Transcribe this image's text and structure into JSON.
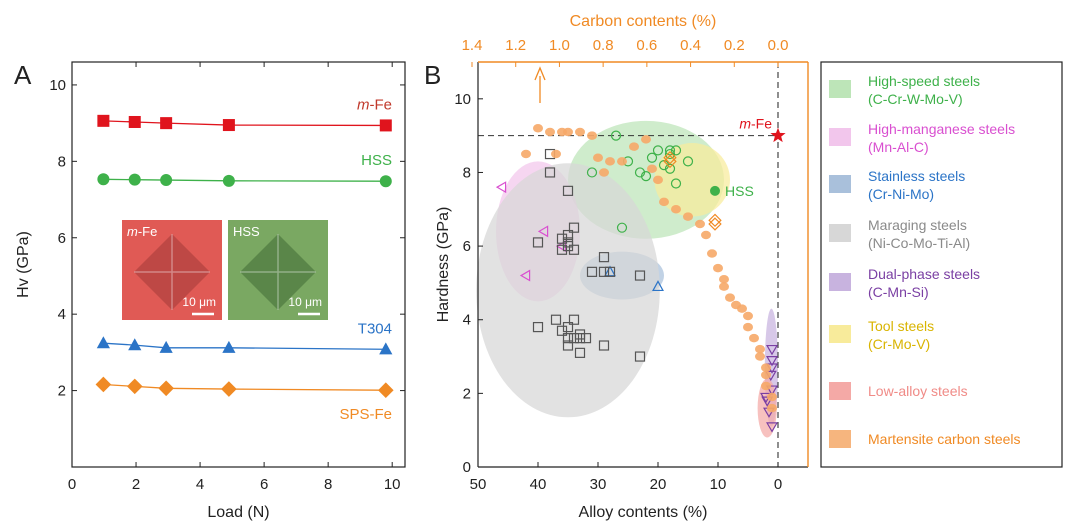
{
  "chart_data": [
    {
      "panel_label": "A",
      "type": "scatter",
      "xlabel": "Load (N)",
      "ylabel": "Hv (GPa)",
      "xlim": [
        0,
        10.4
      ],
      "ylim": [
        0,
        10.6
      ],
      "xticks": [
        0,
        2,
        4,
        6,
        8,
        10
      ],
      "yticks": [
        2,
        4,
        6,
        8,
        10
      ],
      "grid": false,
      "series": [
        {
          "name_prefix": "m",
          "name_suffix": "-Fe",
          "marker": "square",
          "color": "#e0141d",
          "label_color": "#c0392b",
          "x": [
            0.98,
            1.96,
            2.94,
            4.9,
            9.8
          ],
          "y": [
            9.06,
            9.03,
            9.0,
            8.95,
            8.94
          ]
        },
        {
          "name": "HSS",
          "marker": "circle",
          "color": "#3eb14a",
          "label_color": "#3eb14a",
          "x": [
            0.98,
            1.96,
            2.94,
            4.9,
            9.8
          ],
          "y": [
            7.53,
            7.52,
            7.51,
            7.49,
            7.48
          ]
        },
        {
          "name": "T304",
          "marker": "triangle",
          "color": "#2b74c7",
          "label_color": "#2b74c7",
          "x": [
            0.98,
            1.96,
            2.94,
            4.9,
            9.8
          ],
          "y": [
            3.24,
            3.19,
            3.12,
            3.12,
            3.08
          ]
        },
        {
          "name": "SPS-Fe",
          "marker": "diamond",
          "color": "#f08a24",
          "label_color": "#f08a24",
          "x": [
            0.98,
            1.96,
            2.94,
            4.9,
            9.8
          ],
          "y": [
            2.16,
            2.11,
            2.06,
            2.04,
            2.01
          ]
        }
      ],
      "insets": [
        {
          "label_prefix": "m",
          "label_suffix": "-Fe",
          "scale_bar": "10 μm",
          "color": "#e05a55"
        },
        {
          "label": "HSS",
          "scale_bar": "10 μm",
          "color": "#7aa862"
        }
      ]
    },
    {
      "panel_label": "B",
      "type": "scatter",
      "xlabel": "Alloy contents (%)",
      "ylabel": "Hardness (GPa)",
      "x2label": "Carbon contents (%)",
      "xlim": [
        50,
        -5
      ],
      "ylim": [
        0,
        11
      ],
      "xticks": [
        50,
        40,
        30,
        20,
        10,
        0
      ],
      "yticks": [
        0,
        2,
        4,
        6,
        8,
        10
      ],
      "x2ticks": [
        "1.4",
        "1.2",
        "1.0",
        "0.8",
        "0.6",
        "0.4",
        "0.2",
        "0.0"
      ],
      "grid": false,
      "reference_lines": {
        "x": 0,
        "y": 9
      },
      "highlighted_points": [
        {
          "label_prefix": "m",
          "label_suffix": "-Fe",
          "x": 0,
          "y": 9.0,
          "marker": "star",
          "color": "#e0141d"
        },
        {
          "label": "HSS",
          "x": 10.5,
          "y": 7.5,
          "marker": "circle",
          "color": "#3eb14a"
        }
      ],
      "legend_position": "right",
      "legend": [
        {
          "line1": "High-speed steels",
          "line2": "(C-Cr-W-Mo-V)",
          "swatch": "#bde5b8",
          "text_color": "#3eb14a"
        },
        {
          "line1": "High-manganese steels",
          "line2": "(Mn-Al-C)",
          "swatch": "#f2c6ec",
          "text_color": "#d94fd0"
        },
        {
          "line1": "Stainless steels",
          "line2": "(Cr-Ni-Mo)",
          "swatch": "#a9c0db",
          "text_color": "#2b74c7"
        },
        {
          "line1": "Maraging steels",
          "line2": "(Ni-Co-Mo-Ti-Al)",
          "swatch": "#d7d7d7",
          "text_color": "#8a8a8a"
        },
        {
          "line1": "Dual-phase steels",
          "line2": "(C-Mn-Si)",
          "swatch": "#c8b3df",
          "text_color": "#7a3fa3"
        },
        {
          "line1": "Tool steels",
          "line2": "(Cr-Mo-V)",
          "swatch": "#f8eb9b",
          "text_color": "#d9b400"
        },
        {
          "line1": "Low-alloy steels",
          "line2": "",
          "swatch": "#f4a9a6",
          "text_color": "#f08b87"
        },
        {
          "line1": "Martensite carbon steels",
          "line2": "",
          "swatch": "#f6b57e",
          "text_color": "#f08a24"
        }
      ],
      "ellipses": [
        {
          "family": "High-speed steels",
          "cx": 22,
          "cy": 7.8,
          "rx": 13,
          "ry": 1.6,
          "color": "#bde5b8"
        },
        {
          "family": "High-manganese steels",
          "cx": 40,
          "cy": 6.4,
          "rx": 7,
          "ry": 1.9,
          "color": "#f2c6ec"
        },
        {
          "family": "Stainless steels",
          "cx": 26,
          "cy": 5.2,
          "rx": 7,
          "ry": 0.65,
          "color": "#a9c0db"
        },
        {
          "family": "Maraging steels",
          "cx": 35,
          "cy": 4.8,
          "rx": 15.3,
          "ry": 3.45,
          "color": "#d7d7d7"
        },
        {
          "family": "Dual-phase steels",
          "cx": 1.1,
          "cy": 2.7,
          "rx": 1.1,
          "ry": 1.6,
          "color": "#c8b3df"
        },
        {
          "family": "Tool steels",
          "cx": 14.3,
          "cy": 7.8,
          "rx": 6.3,
          "ry": 1.0,
          "color": "#f8eb9b"
        },
        {
          "family": "Low-alloy steels",
          "cx": 1.8,
          "cy": 1.6,
          "rx": 1.6,
          "ry": 0.8,
          "color": "#f4a9a6"
        }
      ],
      "groups": [
        {
          "family": "High-speed steels",
          "marker": "circle-open",
          "color": "#3eb14a",
          "points": [
            [
              27,
              9
            ],
            [
              17,
              8.6
            ],
            [
              18,
              8.6
            ],
            [
              20,
              8.6
            ],
            [
              21,
              8.4
            ],
            [
              18,
              8.1
            ],
            [
              25,
              8.3
            ],
            [
              31,
              8
            ],
            [
              23,
              8
            ],
            [
              22,
              7.9
            ],
            [
              15,
              8.3
            ],
            [
              17,
              7.7
            ],
            [
              26,
              6.5
            ],
            [
              18,
              8.5
            ],
            [
              19,
              8.2
            ]
          ]
        },
        {
          "family": "High-manganese steels",
          "marker": "triangle-left-open",
          "color": "#d94fd0",
          "points": [
            [
              46,
              7.6
            ],
            [
              39,
              6.4
            ],
            [
              36,
              6.0
            ],
            [
              42,
              5.2
            ]
          ]
        },
        {
          "family": "Stainless steels",
          "marker": "triangle-open",
          "color": "#2b74c7",
          "points": [
            [
              28,
              5.3
            ],
            [
              20,
              4.9
            ]
          ]
        },
        {
          "family": "Maraging steels",
          "marker": "square-open",
          "color": "#555555",
          "points": [
            [
              38,
              8.5
            ],
            [
              38,
              8.0
            ],
            [
              35,
              7.5
            ],
            [
              35,
              6.3
            ],
            [
              34,
              6.5
            ],
            [
              35,
              6.1
            ],
            [
              34,
              5.9
            ],
            [
              40,
              6.1
            ],
            [
              29,
              5.7
            ],
            [
              28,
              5.3
            ],
            [
              31,
              5.3
            ],
            [
              36,
              5.9
            ],
            [
              23,
              5.2
            ],
            [
              37,
              4.0
            ],
            [
              40,
              3.8
            ],
            [
              35,
              3.8
            ],
            [
              35,
              3.5
            ],
            [
              34,
              3.5
            ],
            [
              33,
              3.5
            ],
            [
              32,
              3.5
            ],
            [
              29,
              3.3
            ],
            [
              35,
              3.3
            ],
            [
              33,
              3.1
            ],
            [
              23,
              3.0
            ],
            [
              35,
              6.0
            ],
            [
              36,
              3.7
            ],
            [
              34,
              4.0
            ],
            [
              36,
              6.2
            ],
            [
              33,
              3.6
            ],
            [
              29,
              5.3
            ]
          ]
        },
        {
          "family": "Dual-phase steels",
          "marker": "triangle-down-open",
          "color": "#7a3fa3",
          "points": [
            [
              1,
              3.2
            ],
            [
              1,
              2.9
            ],
            [
              1,
              2.7
            ],
            [
              1.2,
              2.5
            ],
            [
              1,
              2.1
            ],
            [
              1.8,
              1.8
            ],
            [
              1.5,
              1.5
            ],
            [
              2,
              1.9
            ],
            [
              1,
              1.1
            ]
          ]
        },
        {
          "family": "Tool steels",
          "marker": "diamond-open",
          "color": "#f08a24",
          "points": [
            [
              18,
              8.4
            ],
            [
              18,
              8.3
            ],
            [
              10.5,
              6.7
            ],
            [
              10.5,
              6.6
            ]
          ]
        },
        {
          "family": "Martensite carbon steels",
          "marker": "blob",
          "color": "#f6a968",
          "points": [
            [
              40,
              9.2
            ],
            [
              38,
              9.1
            ],
            [
              36,
              9.1
            ],
            [
              35,
              9.1
            ],
            [
              33,
              9.1
            ],
            [
              31,
              9.0
            ],
            [
              42,
              8.5
            ],
            [
              37,
              8.5
            ],
            [
              30,
              8.4
            ],
            [
              28,
              8.3
            ],
            [
              29,
              8.0
            ],
            [
              26,
              8.3
            ],
            [
              24,
              8.7
            ],
            [
              22,
              8.9
            ],
            [
              21,
              8.1
            ],
            [
              20,
              7.8
            ],
            [
              19,
              7.2
            ],
            [
              17,
              7.0
            ],
            [
              15,
              6.8
            ],
            [
              13,
              6.6
            ],
            [
              12,
              6.3
            ],
            [
              11,
              5.8
            ],
            [
              10,
              5.4
            ],
            [
              9,
              5.1
            ],
            [
              9,
              4.9
            ],
            [
              8,
              4.6
            ],
            [
              7,
              4.4
            ],
            [
              6,
              4.3
            ],
            [
              5,
              4.1
            ],
            [
              5,
              3.8
            ],
            [
              4,
              3.5
            ],
            [
              3,
              3.2
            ],
            [
              3,
              3.0
            ],
            [
              2,
              2.7
            ],
            [
              2,
              2.5
            ],
            [
              2,
              2.2
            ],
            [
              1,
              1.9
            ],
            [
              1,
              1.6
            ]
          ]
        }
      ]
    }
  ]
}
